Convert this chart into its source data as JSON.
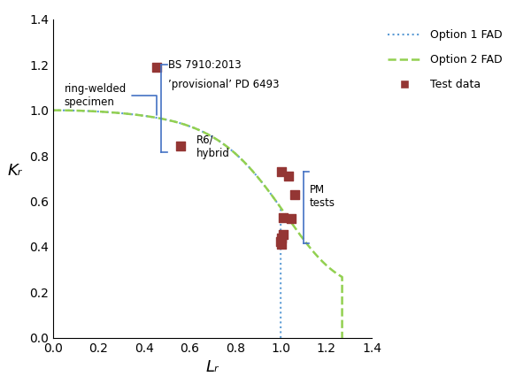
{
  "xlabel": "Lᵣ",
  "ylabel": "Kᵣ",
  "xlim": [
    0,
    1.4
  ],
  "ylim": [
    0,
    1.4
  ],
  "xticks": [
    0,
    0.2,
    0.4,
    0.6,
    0.8,
    1.0,
    1.2,
    1.4
  ],
  "yticks": [
    0,
    0.2,
    0.4,
    0.6,
    0.8,
    1.0,
    1.2,
    1.4
  ],
  "option1_color": "#5B9BD5",
  "option2_color": "#92D050",
  "brace_color": "#4472C4",
  "test_data_color": "#943634",
  "option1_Lr_max": 1.0,
  "option2_Lr_max": 1.27,
  "scatter_data": [
    [
      0.455,
      1.19
    ],
    [
      0.56,
      0.845
    ],
    [
      1.005,
      0.73
    ],
    [
      1.035,
      0.71
    ],
    [
      1.06,
      0.63
    ],
    [
      1.045,
      0.525
    ],
    [
      1.01,
      0.53
    ],
    [
      1.01,
      0.455
    ],
    [
      1.005,
      0.44
    ],
    [
      1.0,
      0.425
    ],
    [
      1.005,
      0.41
    ]
  ],
  "legend_labels": [
    "Option 1 FAD",
    "Option 2 FAD",
    "Test data"
  ]
}
